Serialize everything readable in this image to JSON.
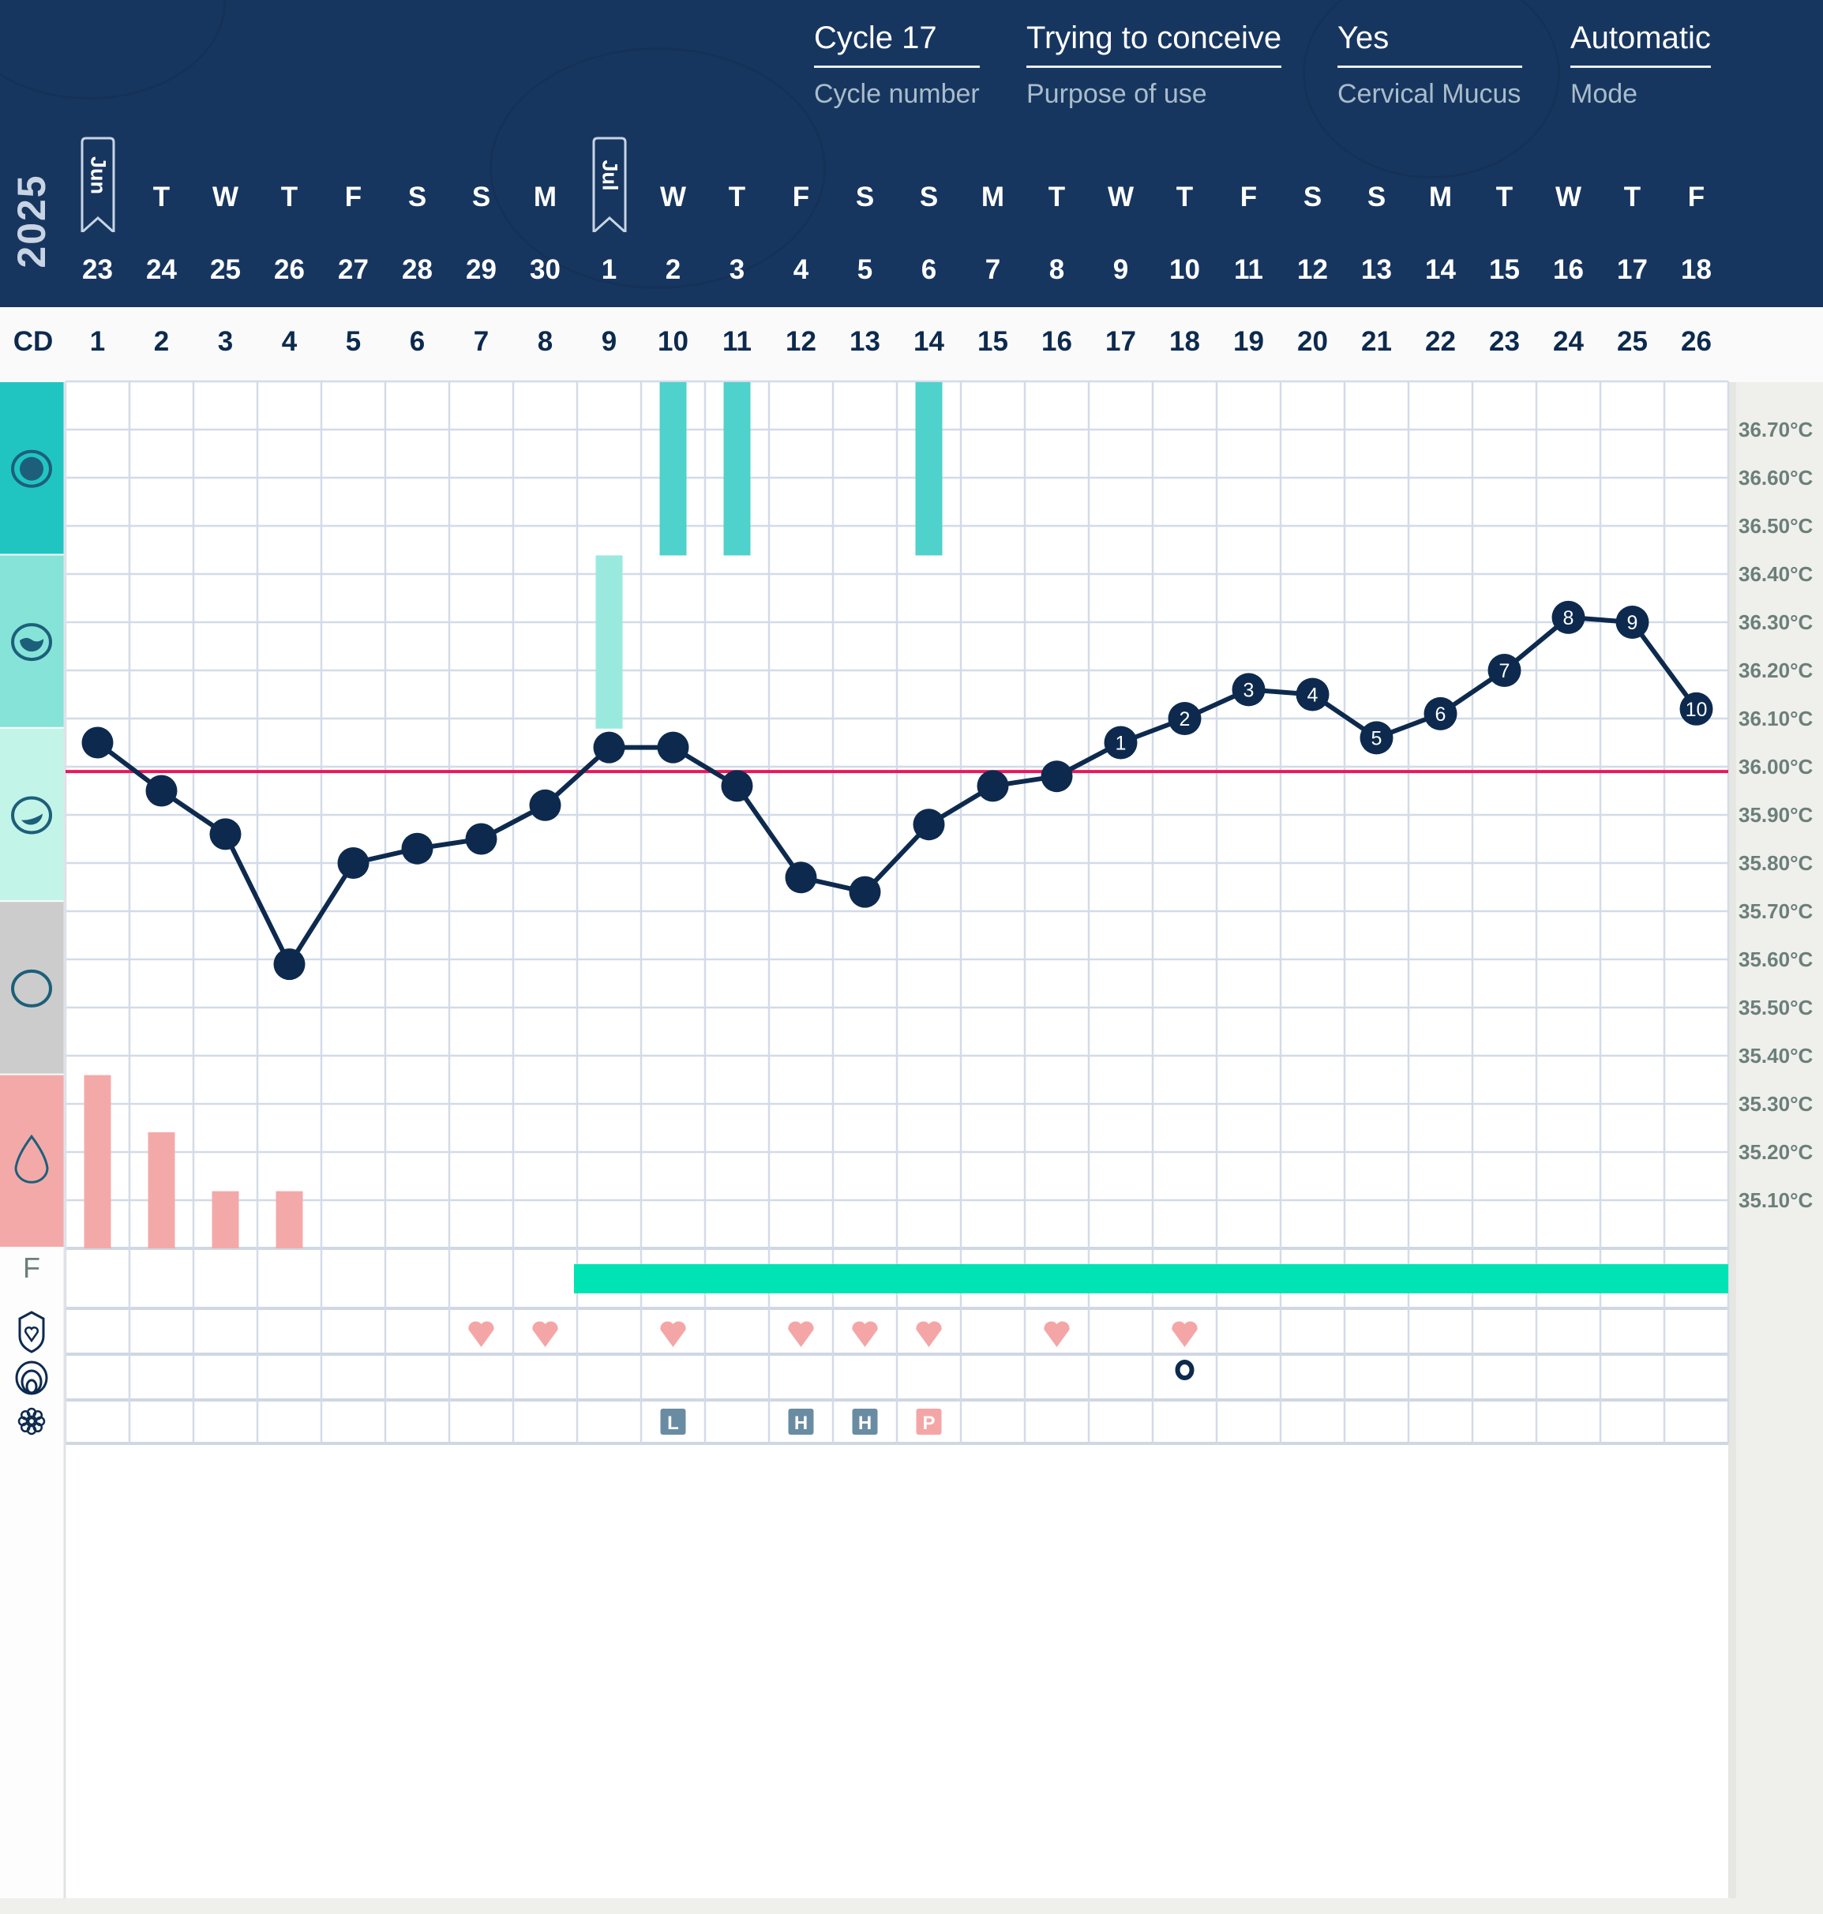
{
  "header": {
    "year": "2025",
    "meta": [
      {
        "value": "Cycle 17",
        "label": "Cycle number"
      },
      {
        "value": "Trying to conceive",
        "label": "Purpose of use"
      },
      {
        "value": "Yes",
        "label": "Cervical Mucus"
      },
      {
        "value": "Automatic",
        "label": "Mode"
      }
    ],
    "month_flags": [
      {
        "label": "Jun",
        "day_index": 0
      },
      {
        "label": "Jul",
        "day_index": 8
      }
    ],
    "weekdays": [
      "",
      "T",
      "W",
      "T",
      "F",
      "S",
      "S",
      "M",
      "",
      "W",
      "T",
      "F",
      "S",
      "S",
      "M",
      "T",
      "W",
      "T",
      "F",
      "S",
      "S",
      "M",
      "T",
      "W",
      "T",
      "F"
    ],
    "dates": [
      "23",
      "24",
      "25",
      "26",
      "27",
      "28",
      "29",
      "30",
      "1",
      "2",
      "3",
      "4",
      "5",
      "6",
      "7",
      "8",
      "9",
      "10",
      "11",
      "12",
      "13",
      "14",
      "15",
      "16",
      "17",
      "18"
    ],
    "cd_label": "CD",
    "cycle_days": [
      "1",
      "2",
      "3",
      "4",
      "5",
      "6",
      "7",
      "8",
      "9",
      "10",
      "11",
      "12",
      "13",
      "14",
      "15",
      "16",
      "17",
      "18",
      "19",
      "20",
      "21",
      "22",
      "23",
      "24",
      "25",
      "26"
    ]
  },
  "colors": {
    "header_bg": "#17365f",
    "temp_line": "#0d2a4e",
    "coverline": "#e8175d",
    "fertile": "#00e3b5",
    "period": "#f4a9a9",
    "heart": "#f4a6a6",
    "test_badge": "#6a8ca3",
    "test_peak": "#f4a6a6",
    "mucus_bands": [
      "#20c5c2",
      "#86e3d8",
      "#c2f5e8",
      "#cccccc",
      "#f4a9a9"
    ]
  },
  "side_icons": {
    "bands": [
      "mucus-eggwhite-icon",
      "mucus-creamy-icon",
      "mucus-moist-icon",
      "mucus-dry-icon",
      "period-drop-icon"
    ],
    "fertile_label": "F",
    "rows": [
      "sex-shield-heart-icon",
      "cervix-icon",
      "ovulation-test-flower-icon"
    ]
  },
  "chart_data": {
    "type": "line",
    "x": [
      "1",
      "2",
      "3",
      "4",
      "5",
      "6",
      "7",
      "8",
      "9",
      "10",
      "11",
      "12",
      "13",
      "14",
      "15",
      "16",
      "17",
      "18",
      "19",
      "20",
      "21",
      "22",
      "23",
      "24",
      "25",
      "26"
    ],
    "ylim": [
      35.0,
      36.8
    ],
    "grid": true,
    "y_tick_labels": [
      "36.70°C",
      "36.60°C",
      "36.50°C",
      "36.40°C",
      "36.30°C",
      "36.20°C",
      "36.10°C",
      "36.00°C",
      "35.90°C",
      "35.80°C",
      "35.70°C",
      "35.60°C",
      "35.50°C",
      "35.40°C",
      "35.30°C",
      "35.20°C",
      "35.10°C"
    ],
    "y_ticks": [
      36.7,
      36.6,
      36.5,
      36.4,
      36.3,
      36.2,
      36.1,
      36.0,
      35.9,
      35.8,
      35.7,
      35.6,
      35.5,
      35.4,
      35.3,
      35.2,
      35.1
    ],
    "temperatures": [
      36.05,
      35.95,
      35.86,
      35.59,
      35.8,
      35.83,
      35.85,
      35.92,
      36.04,
      36.04,
      35.96,
      35.77,
      35.74,
      35.88,
      35.96,
      35.98,
      36.05,
      36.1,
      36.16,
      36.15,
      36.06,
      36.11,
      36.2,
      36.31,
      36.3,
      36.12
    ],
    "point_labels": [
      "",
      "",
      "",
      "",
      "",
      "",
      "",
      "",
      "",
      "",
      "",
      "",
      "",
      "",
      "",
      "",
      "1",
      "2",
      "3",
      "4",
      "5",
      "6",
      "7",
      "8",
      "9",
      "10"
    ],
    "coverline": 35.99,
    "mucus": [
      {
        "day": 9,
        "level": 2
      },
      {
        "day": 10,
        "level": 1
      },
      {
        "day": 11,
        "level": 1
      },
      {
        "day": 14,
        "level": 1
      }
    ],
    "period": [
      {
        "day": 1,
        "intensity": 1.0
      },
      {
        "day": 2,
        "intensity": 0.67
      },
      {
        "day": 3,
        "intensity": 0.33
      },
      {
        "day": 4,
        "intensity": 0.33
      }
    ],
    "fertile_window": {
      "start_day": 9,
      "end_day": 26
    },
    "intercourse_days": [
      7,
      8,
      10,
      12,
      13,
      14,
      16,
      18
    ],
    "cervix_days": [
      18
    ],
    "tests": [
      {
        "day": 10,
        "label": "L"
      },
      {
        "day": 12,
        "label": "H"
      },
      {
        "day": 13,
        "label": "H"
      },
      {
        "day": 14,
        "label": "P"
      }
    ]
  }
}
